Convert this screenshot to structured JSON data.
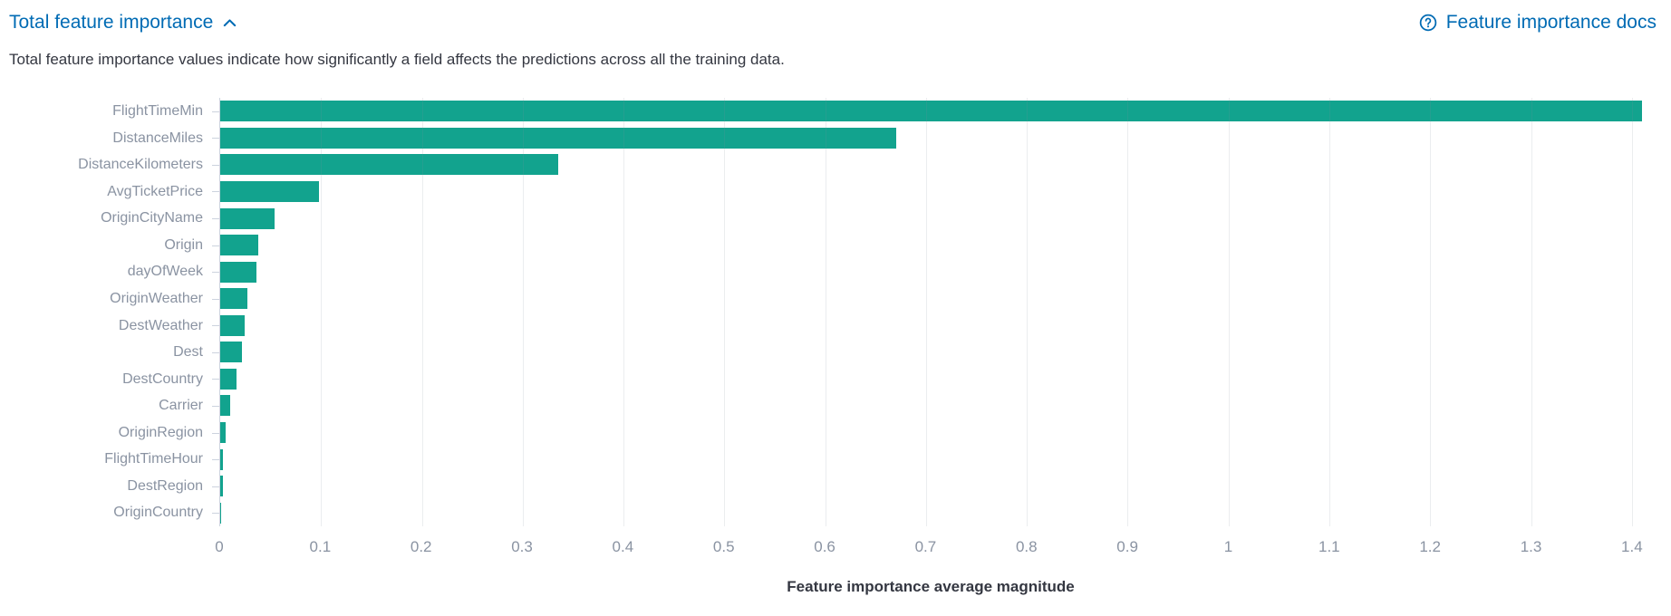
{
  "header": {
    "title": "Total feature importance",
    "docs_link_label": "Feature importance docs",
    "subtitle": "Total feature importance values indicate how significantly a field affects the predictions across all the training data."
  },
  "icons": {
    "collapse": "chevron-up-icon",
    "docs": "help-circle-icon"
  },
  "colors": {
    "link": "#006BB4",
    "bar": "#12A38E",
    "axis_label": "#8A93A2",
    "axis_line": "#CCD3DE",
    "text": "#343741"
  },
  "chart_data": {
    "type": "bar",
    "orientation": "horizontal",
    "title": "Total feature importance",
    "categories": [
      "FlightTimeMin",
      "DistanceMiles",
      "DistanceKilometers",
      "AvgTicketPrice",
      "OriginCityName",
      "Origin",
      "dayOfWeek",
      "OriginWeather",
      "DestWeather",
      "Dest",
      "DestCountry",
      "Carrier",
      "OriginRegion",
      "FlightTimeHour",
      "DestRegion",
      "OriginCountry"
    ],
    "values": [
      1.41,
      0.67,
      0.335,
      0.098,
      0.054,
      0.038,
      0.036,
      0.027,
      0.024,
      0.022,
      0.016,
      0.01,
      0.005,
      0.003,
      0.0025,
      0.0005
    ],
    "xlabel": "Feature importance average magnitude",
    "ylabel": "",
    "xlim": [
      0,
      1.41
    ],
    "x_ticks": [
      0,
      0.1,
      0.2,
      0.3,
      0.4,
      0.5,
      0.6,
      0.7,
      0.8,
      0.9,
      1,
      1.1,
      1.2,
      1.3,
      1.4
    ],
    "x_tick_labels": [
      "0",
      "0.1",
      "0.2",
      "0.3",
      "0.4",
      "0.5",
      "0.6",
      "0.7",
      "0.8",
      "0.9",
      "1",
      "1.1",
      "1.2",
      "1.3",
      "1.4"
    ],
    "grid": true,
    "legend": "none",
    "bar_color": "#12A38E"
  }
}
